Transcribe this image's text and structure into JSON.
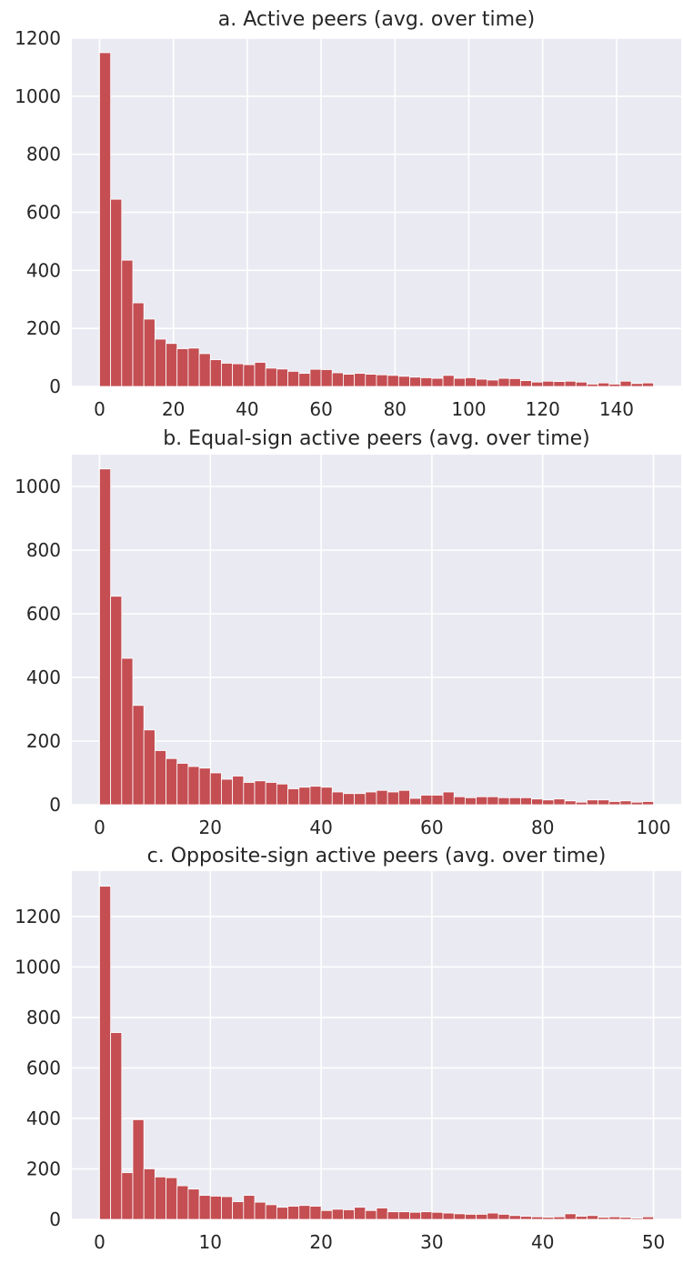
{
  "chart_data": [
    {
      "type": "bar",
      "title": "a. Active peers (avg. over time)",
      "xlabel": "",
      "ylabel": "",
      "xlim": [
        -7.5,
        157.5
      ],
      "ylim": [
        0,
        1200
      ],
      "xticks": [
        0,
        20,
        40,
        60,
        80,
        100,
        120,
        140
      ],
      "yticks": [
        0,
        200,
        400,
        600,
        800,
        1000,
        1200
      ],
      "grid": true,
      "bar_color": "#c44e52",
      "background": "#eaeaf2",
      "bin_start": 0,
      "bin_width": 3,
      "values": [
        1150,
        645,
        435,
        288,
        232,
        163,
        148,
        130,
        132,
        113,
        92,
        80,
        78,
        75,
        83,
        63,
        60,
        52,
        45,
        59,
        58,
        47,
        42,
        45,
        42,
        40,
        38,
        35,
        32,
        30,
        28,
        38,
        28,
        30,
        25,
        22,
        28,
        27,
        20,
        15,
        18,
        17,
        18,
        15,
        8,
        12,
        8,
        18,
        10,
        12
      ]
    },
    {
      "type": "bar",
      "title": "b. Equal-sign active peers (avg. over time)",
      "xlabel": "",
      "ylabel": "",
      "xlim": [
        -5,
        105
      ],
      "ylim": [
        0,
        1100
      ],
      "xticks": [
        0,
        20,
        40,
        60,
        80,
        100
      ],
      "yticks": [
        0,
        200,
        400,
        600,
        800,
        1000
      ],
      "grid": true,
      "bar_color": "#c44e52",
      "background": "#eaeaf2",
      "bin_start": 0,
      "bin_width": 2,
      "values": [
        1055,
        655,
        460,
        312,
        235,
        170,
        145,
        130,
        120,
        115,
        100,
        80,
        90,
        70,
        75,
        70,
        65,
        50,
        55,
        58,
        55,
        40,
        35,
        35,
        40,
        45,
        40,
        45,
        20,
        30,
        30,
        40,
        25,
        22,
        25,
        25,
        22,
        22,
        22,
        18,
        15,
        18,
        12,
        8,
        15,
        15,
        10,
        12,
        8,
        10
      ]
    },
    {
      "type": "bar",
      "title": "c. Opposite-sign active peers (avg. over time)",
      "xlabel": "",
      "ylabel": "",
      "xlim": [
        -2.5,
        52.5
      ],
      "ylim": [
        0,
        1380
      ],
      "xticks": [
        0,
        10,
        20,
        30,
        40,
        50
      ],
      "yticks": [
        0,
        200,
        400,
        600,
        800,
        1000,
        1200
      ],
      "grid": true,
      "bar_color": "#c44e52",
      "background": "#eaeaf2",
      "bin_start": 0,
      "bin_width": 1,
      "values": [
        1320,
        740,
        185,
        395,
        200,
        168,
        165,
        133,
        120,
        95,
        92,
        90,
        70,
        95,
        68,
        58,
        48,
        52,
        55,
        52,
        35,
        40,
        38,
        48,
        35,
        45,
        30,
        30,
        28,
        30,
        28,
        25,
        22,
        20,
        20,
        25,
        20,
        15,
        12,
        10,
        8,
        10,
        22,
        12,
        15,
        8,
        10,
        8,
        5,
        10
      ]
    }
  ]
}
